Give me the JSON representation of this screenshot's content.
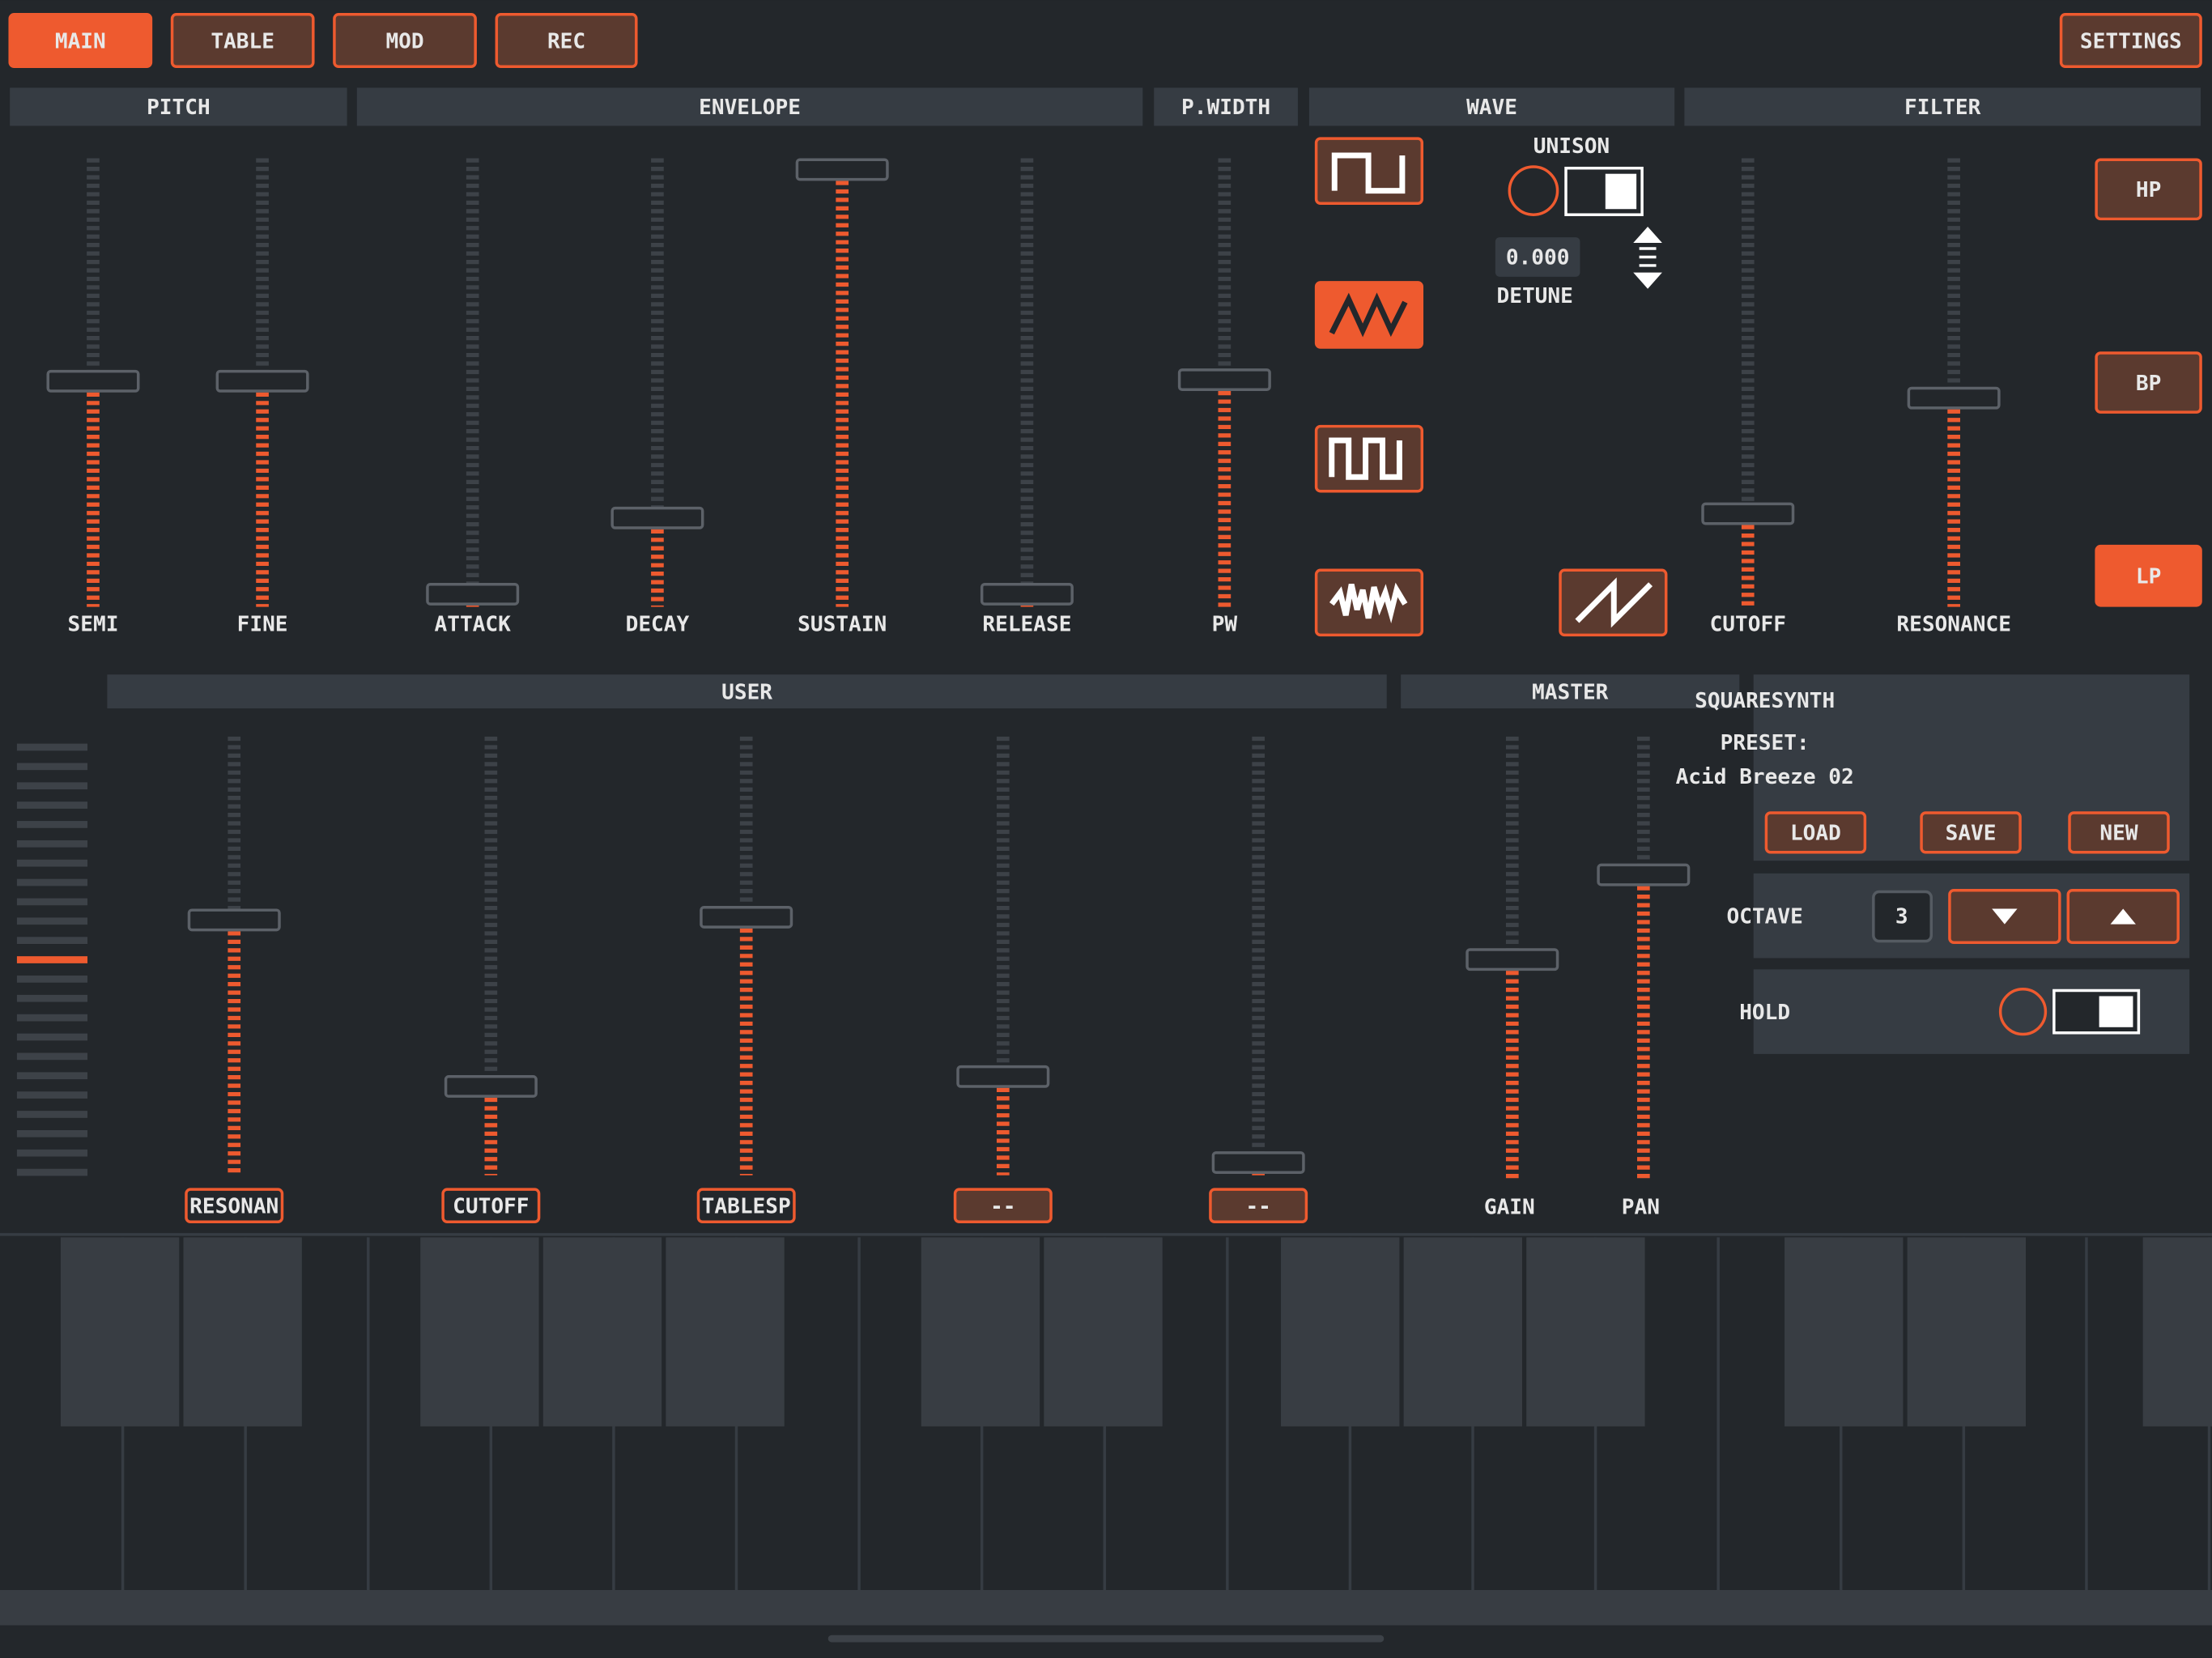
{
  "tabs": [
    "MAIN",
    "TABLE",
    "MOD",
    "REC"
  ],
  "settings_button": "SETTINGS",
  "pitch": {
    "title": "PITCH",
    "sliders": [
      "SEMI",
      "FINE"
    ]
  },
  "envelope": {
    "title": "ENVELOPE",
    "sliders": [
      "ATTACK",
      "DECAY",
      "SUSTAIN",
      "RELEASE"
    ]
  },
  "pulse_width": {
    "title": "P.WIDTH",
    "sliders": [
      "PW"
    ]
  },
  "wave": {
    "title": "WAVE",
    "unison": "UNISON",
    "detune_value": "0.000",
    "detune": "DETUNE"
  },
  "filter": {
    "title": "FILTER",
    "sliders": [
      "CUTOFF",
      "RESONANCE"
    ],
    "modes": [
      "HP",
      "BP",
      "LP"
    ]
  },
  "user": {
    "title": "USER",
    "slots": [
      "RESONAN",
      "CUTOFF",
      "TABLESP",
      "--",
      "--"
    ]
  },
  "master": {
    "title": "MASTER",
    "sliders": [
      "GAIN",
      "PAN"
    ]
  },
  "preset": {
    "app": "SQUARESYNTH",
    "label": "PRESET:",
    "name": "Acid Breeze 02",
    "buttons": [
      "LOAD",
      "SAVE",
      "NEW"
    ]
  },
  "octave": {
    "label": "OCTAVE",
    "value": 3
  },
  "hold": {
    "label": "HOLD"
  }
}
